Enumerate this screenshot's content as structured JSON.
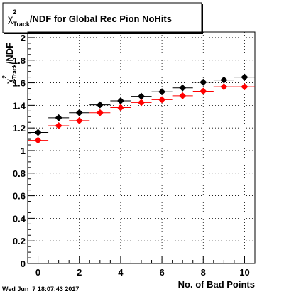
{
  "window": {
    "footer_timestamp": "Wed Jun  7 18:07:43 2017"
  },
  "chart_data": {
    "type": "scatter",
    "title": "χ²_Track/NDF for Global Rec Pion NoHits",
    "title_parts": {
      "symbol": "χ",
      "superscript": "2",
      "subscript": "Track",
      "rest": "/NDF for Global Rec Pion NoHits"
    },
    "xlabel": "No. of Bad Points",
    "ylabel": "χ²_Track/NDF",
    "ylabel_parts": {
      "symbol": "χ",
      "superscript": "2",
      "subscript": "Track",
      "rest": "/NDF"
    },
    "xlim": [
      -0.5,
      10.5
    ],
    "ylim": [
      0,
      2.05
    ],
    "x_ticks": [
      0,
      2,
      4,
      6,
      8,
      10
    ],
    "y_ticks": [
      0,
      0.2,
      0.4,
      0.6,
      0.8,
      1,
      1.2,
      1.4,
      1.6,
      1.8,
      2
    ],
    "y_tick_labels": [
      "0",
      "0.2",
      "0.4",
      "0.6",
      "0.8",
      "1",
      "1.2",
      "1.4",
      "1.6",
      "1.8",
      "2"
    ],
    "x_tick_labels": [
      "0",
      "2",
      "4",
      "6",
      "8",
      "10"
    ],
    "grid": true,
    "x_error_halfwidth": 0.5,
    "series": [
      {
        "color": "#000000",
        "marker": "diamond",
        "x": [
          0,
          1,
          2,
          3,
          4,
          5,
          6,
          7,
          8,
          9,
          10
        ],
        "y": [
          1.16,
          1.29,
          1.335,
          1.405,
          1.44,
          1.48,
          1.52,
          1.555,
          1.605,
          1.625,
          1.65
        ]
      },
      {
        "color": "#ff0000",
        "marker": "diamond",
        "x": [
          0,
          1,
          2,
          3,
          4,
          5,
          6,
          7,
          8,
          9,
          10
        ],
        "y": [
          1.09,
          1.22,
          1.265,
          1.335,
          1.38,
          1.425,
          1.45,
          1.485,
          1.525,
          1.565,
          1.565
        ]
      }
    ]
  }
}
